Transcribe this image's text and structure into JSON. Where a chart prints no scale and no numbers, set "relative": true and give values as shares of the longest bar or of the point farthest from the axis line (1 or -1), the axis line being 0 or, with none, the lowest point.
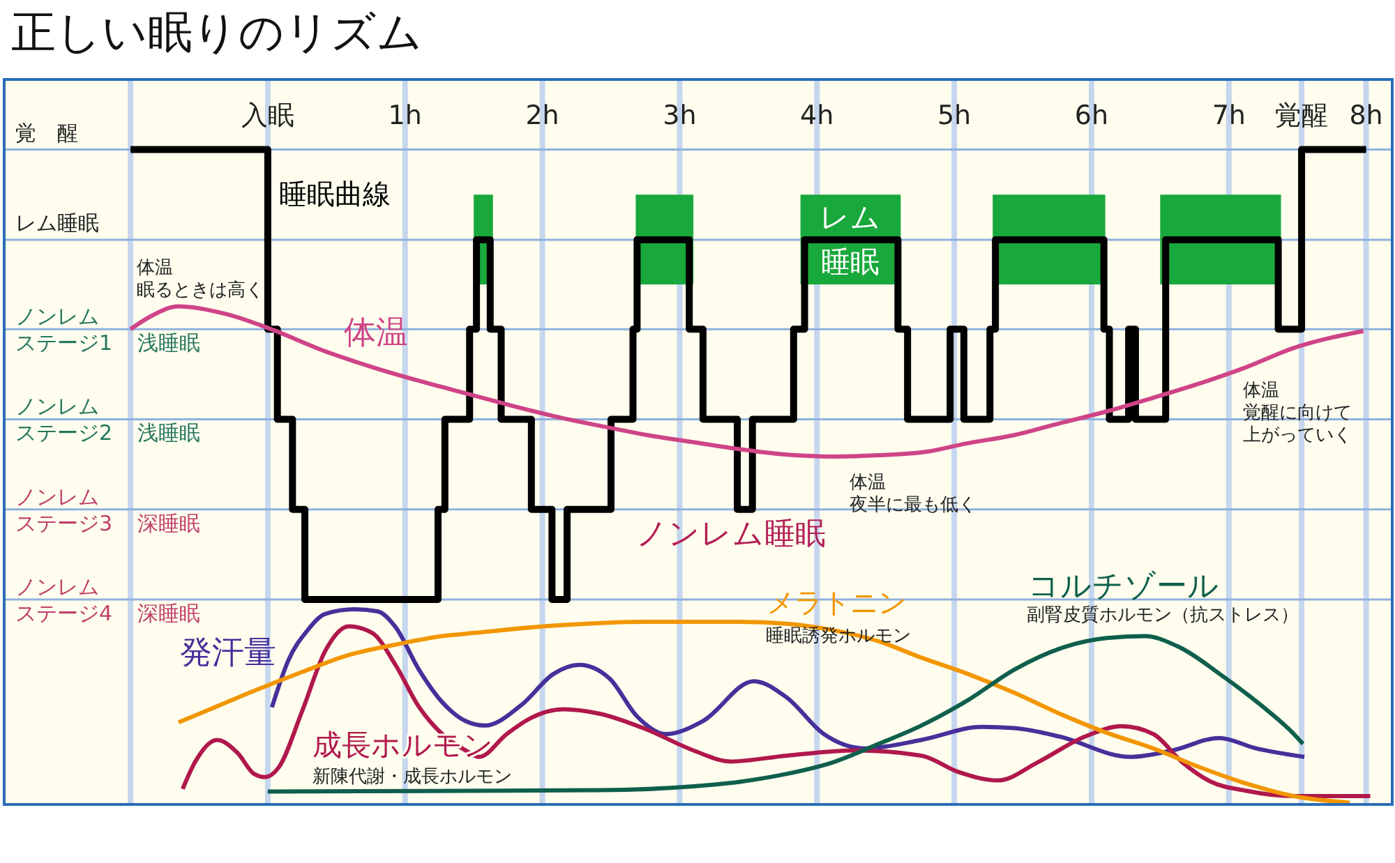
{
  "chart_data": {
    "type": "line",
    "title": "正しい眠りのリズム",
    "relative": true,
    "xlim": [
      -1.92,
      8.19
    ],
    "xticks": [
      {
        "value": -1,
        "label": null
      },
      {
        "value": 0,
        "label": "入眠"
      },
      {
        "value": 1,
        "label": "1h"
      },
      {
        "value": 2,
        "label": "2h"
      },
      {
        "value": 3,
        "label": "3h"
      },
      {
        "value": 4,
        "label": "4h"
      },
      {
        "value": 5,
        "label": "5h"
      },
      {
        "value": 6,
        "label": "6h"
      },
      {
        "value": 7,
        "label": "7h"
      },
      {
        "value": 7.53,
        "label": "覚醒"
      },
      {
        "value": 8,
        "label": "8h"
      }
    ],
    "grid": "x",
    "ref_lines": [
      {
        "axis": "y",
        "value": 1,
        "label": "覚　醒",
        "color": "#8fb1de"
      },
      {
        "axis": "y",
        "value": 0.862,
        "label": "レム睡眠",
        "color": "#8fb1de"
      },
      {
        "axis": "y",
        "value": 0.725,
        "label": "ノンレムステージ1 浅睡眠",
        "color": "#8fb1de"
      },
      {
        "axis": "y",
        "value": 0.587,
        "label": "ノンレムステージ2 浅睡眠",
        "color": "#8fb1de"
      },
      {
        "axis": "y",
        "value": 0.449,
        "label": "ノンレムステージ3 深睡眠",
        "color": "#8fb1de"
      },
      {
        "axis": "y",
        "value": 0.311,
        "label": "ノンレムステージ4 深睡眠",
        "color": "#8fb1de"
      }
    ],
    "series": [
      {
        "name": "睡眠曲線",
        "type": "step",
        "color": "#000000",
        "x": [
          -1,
          0,
          0.07,
          0.18,
          0.27,
          1.24,
          1.29,
          1.47,
          1.52,
          1.62,
          1.7,
          1.92,
          2.07,
          2.18,
          2.5,
          2.66,
          2.69,
          3.07,
          3.17,
          3.42,
          3.53,
          3.83,
          3.91,
          4.59,
          4.66,
          4.97,
          5.07,
          5.26,
          5.3,
          6.09,
          6.13,
          6.27,
          6.32,
          6.54,
          7.36,
          7.53,
          8.0
        ],
        "values": [
          1,
          0.725,
          0.587,
          0.449,
          0.311,
          0.449,
          0.587,
          0.725,
          0.862,
          0.725,
          0.587,
          0.449,
          0.311,
          0.449,
          0.587,
          0.725,
          0.862,
          0.725,
          0.587,
          0.449,
          0.587,
          0.725,
          0.862,
          0.725,
          0.587,
          0.725,
          0.587,
          0.725,
          0.862,
          0.725,
          0.587,
          0.725,
          0.587,
          0.862,
          0.725,
          1,
          1
        ]
      },
      {
        "name": "体温",
        "color": "#cf4487",
        "x": [
          -1.0,
          -0.85,
          -0.65,
          -0.3,
          0,
          0.42,
          0.76,
          1.1,
          1.51,
          1.74,
          2.08,
          2.42,
          2.76,
          3.1,
          3.44,
          3.77,
          4.12,
          4.45,
          4.79,
          5.09,
          5.44,
          5.77,
          6.11,
          6.45,
          6.79,
          7.13,
          7.47,
          7.98
        ],
        "values": [
          0.725,
          0.745,
          0.76,
          0.748,
          0.727,
          0.691,
          0.667,
          0.646,
          0.623,
          0.61,
          0.592,
          0.577,
          0.563,
          0.552,
          0.541,
          0.533,
          0.53,
          0.532,
          0.537,
          0.55,
          0.563,
          0.581,
          0.599,
          0.62,
          0.642,
          0.667,
          0.696,
          0.722
        ]
      },
      {
        "name": "発汗量",
        "color": "#46309a",
        "x": [
          0.03,
          0.15,
          0.29,
          0.42,
          0.63,
          0.8,
          0.93,
          1.1,
          1.27,
          1.44,
          1.58,
          1.85,
          2.08,
          2.27,
          2.49,
          2.69,
          2.9,
          3.17,
          3.54,
          3.78,
          4.05,
          4.35,
          4.76,
          5.2,
          5.44,
          5.77,
          6.28,
          6.59,
          6.93,
          7.2,
          7.55
        ],
        "values": [
          0.146,
          0.218,
          0.264,
          0.289,
          0.296,
          0.293,
          0.269,
          0.204,
          0.154,
          0.125,
          0.118,
          0.15,
          0.197,
          0.211,
          0.19,
          0.132,
          0.105,
          0.125,
          0.186,
          0.161,
          0.105,
          0.083,
          0.096,
          0.116,
          0.114,
          0.101,
          0.07,
          0.08,
          0.099,
          0.083,
          0.07
        ]
      },
      {
        "name": "成長ホルモン",
        "color": "#b0184c",
        "x": [
          -0.62,
          -0.53,
          -0.37,
          -0.22,
          -0.1,
          -0.02,
          0.08,
          0.25,
          0.42,
          0.59,
          0.76,
          0.93,
          1.1,
          1.27,
          1.44,
          1.54,
          1.74,
          1.91,
          2.15,
          2.42,
          2.76,
          3.1,
          3.37,
          3.78,
          4.28,
          4.76,
          5.03,
          5.32,
          5.61,
          5.95,
          6.22,
          6.45,
          6.66,
          6.86,
          7.13,
          7.47,
          8.03
        ],
        "values": [
          0.021,
          0.062,
          0.096,
          0.076,
          0.044,
          0.039,
          0.054,
          0.14,
          0.233,
          0.27,
          0.26,
          0.211,
          0.147,
          0.105,
          0.08,
          0.07,
          0.105,
          0.129,
          0.143,
          0.136,
          0.112,
          0.08,
          0.063,
          0.072,
          0.08,
          0.072,
          0.047,
          0.034,
          0.062,
          0.101,
          0.117,
          0.105,
          0.062,
          0.033,
          0.018,
          0.01,
          0.01
        ]
      },
      {
        "name": "メラトニン",
        "color": "#f29600",
        "x": [
          -0.65,
          -0.42,
          -0.09,
          0.25,
          0.59,
          0.93,
          1.27,
          1.51,
          2.08,
          2.76,
          3.44,
          3.78,
          4.12,
          4.45,
          4.76,
          5.1,
          5.44,
          5.77,
          6.11,
          6.45,
          6.79,
          7.13,
          7.47,
          7.88
        ],
        "values": [
          0.123,
          0.143,
          0.172,
          0.2,
          0.226,
          0.242,
          0.255,
          0.26,
          0.271,
          0.277,
          0.277,
          0.274,
          0.264,
          0.247,
          0.222,
          0.197,
          0.168,
          0.136,
          0.107,
          0.083,
          0.054,
          0.029,
          0.01,
          0
        ]
      },
      {
        "name": "コルチゾール",
        "color": "#0f5f4c",
        "x": [
          0.0,
          1.41,
          2.42,
          3.1,
          3.44,
          3.78,
          4.12,
          4.45,
          4.76,
          5.1,
          5.44,
          5.77,
          6.11,
          6.39,
          6.62,
          6.96,
          7.23,
          7.44,
          7.54
        ],
        "values": [
          0.017,
          0.018,
          0.019,
          0.025,
          0.032,
          0.044,
          0.062,
          0.09,
          0.118,
          0.157,
          0.204,
          0.236,
          0.252,
          0.255,
          0.24,
          0.193,
          0.15,
          0.112,
          0.09
        ]
      }
    ],
    "bands": [
      {
        "axis": "x",
        "from": 1.5,
        "to": 1.64,
        "color": "#19a83c"
      },
      {
        "axis": "x",
        "from": 2.68,
        "to": 3.1,
        "color": "#19a83c"
      },
      {
        "axis": "x",
        "from": 3.88,
        "to": 4.61,
        "color": "#19a83c",
        "label": "レム睡眠"
      },
      {
        "axis": "x",
        "from": 5.28,
        "to": 6.1,
        "color": "#19a83c"
      },
      {
        "axis": "x",
        "from": 6.5,
        "to": 7.38,
        "color": "#19a83c"
      }
    ],
    "annotations": [
      "体温眠るときは高く",
      "体温夜半に最も低く",
      "体温覚醒に向けて上がっていく",
      "ノンレム睡眠",
      "新陳代謝・成長ホルモン",
      "睡眠誘発ホルモン",
      "副腎皮質ホルモン（抗ストレス）"
    ]
  }
}
